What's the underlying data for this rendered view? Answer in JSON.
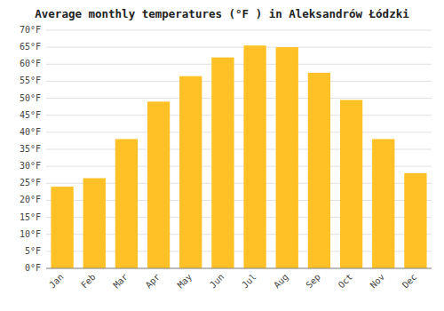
{
  "chart_data": {
    "type": "bar",
    "title": "Average monthly temperatures (°F ) in Aleksandrów Łódzki",
    "categories": [
      "Jan",
      "Feb",
      "Mar",
      "Apr",
      "May",
      "Jun",
      "Jul",
      "Aug",
      "Sep",
      "Oct",
      "Nov",
      "Dec"
    ],
    "values": [
      24,
      26.5,
      38,
      49,
      56.5,
      62,
      65.5,
      65,
      57.5,
      49.5,
      38,
      28
    ],
    "color": "#FFC125",
    "ylim": [
      0,
      70
    ],
    "yticks": [
      {
        "value": 0,
        "label": "0°F"
      },
      {
        "value": 5,
        "label": "5°F"
      },
      {
        "value": 10,
        "label": "10°F"
      },
      {
        "value": 15,
        "label": "15°F"
      },
      {
        "value": 20,
        "label": "20°F"
      },
      {
        "value": 25,
        "label": "25°F"
      },
      {
        "value": 30,
        "label": "30°F"
      },
      {
        "value": 35,
        "label": "35°F"
      },
      {
        "value": 40,
        "label": "40°F"
      },
      {
        "value": 45,
        "label": "45°F"
      },
      {
        "value": 50,
        "label": "50°F"
      },
      {
        "value": 55,
        "label": "55°F"
      },
      {
        "value": 60,
        "label": "60°F"
      },
      {
        "value": 65,
        "label": "65°F"
      },
      {
        "value": 70,
        "label": "70°F"
      }
    ],
    "grid": true
  }
}
